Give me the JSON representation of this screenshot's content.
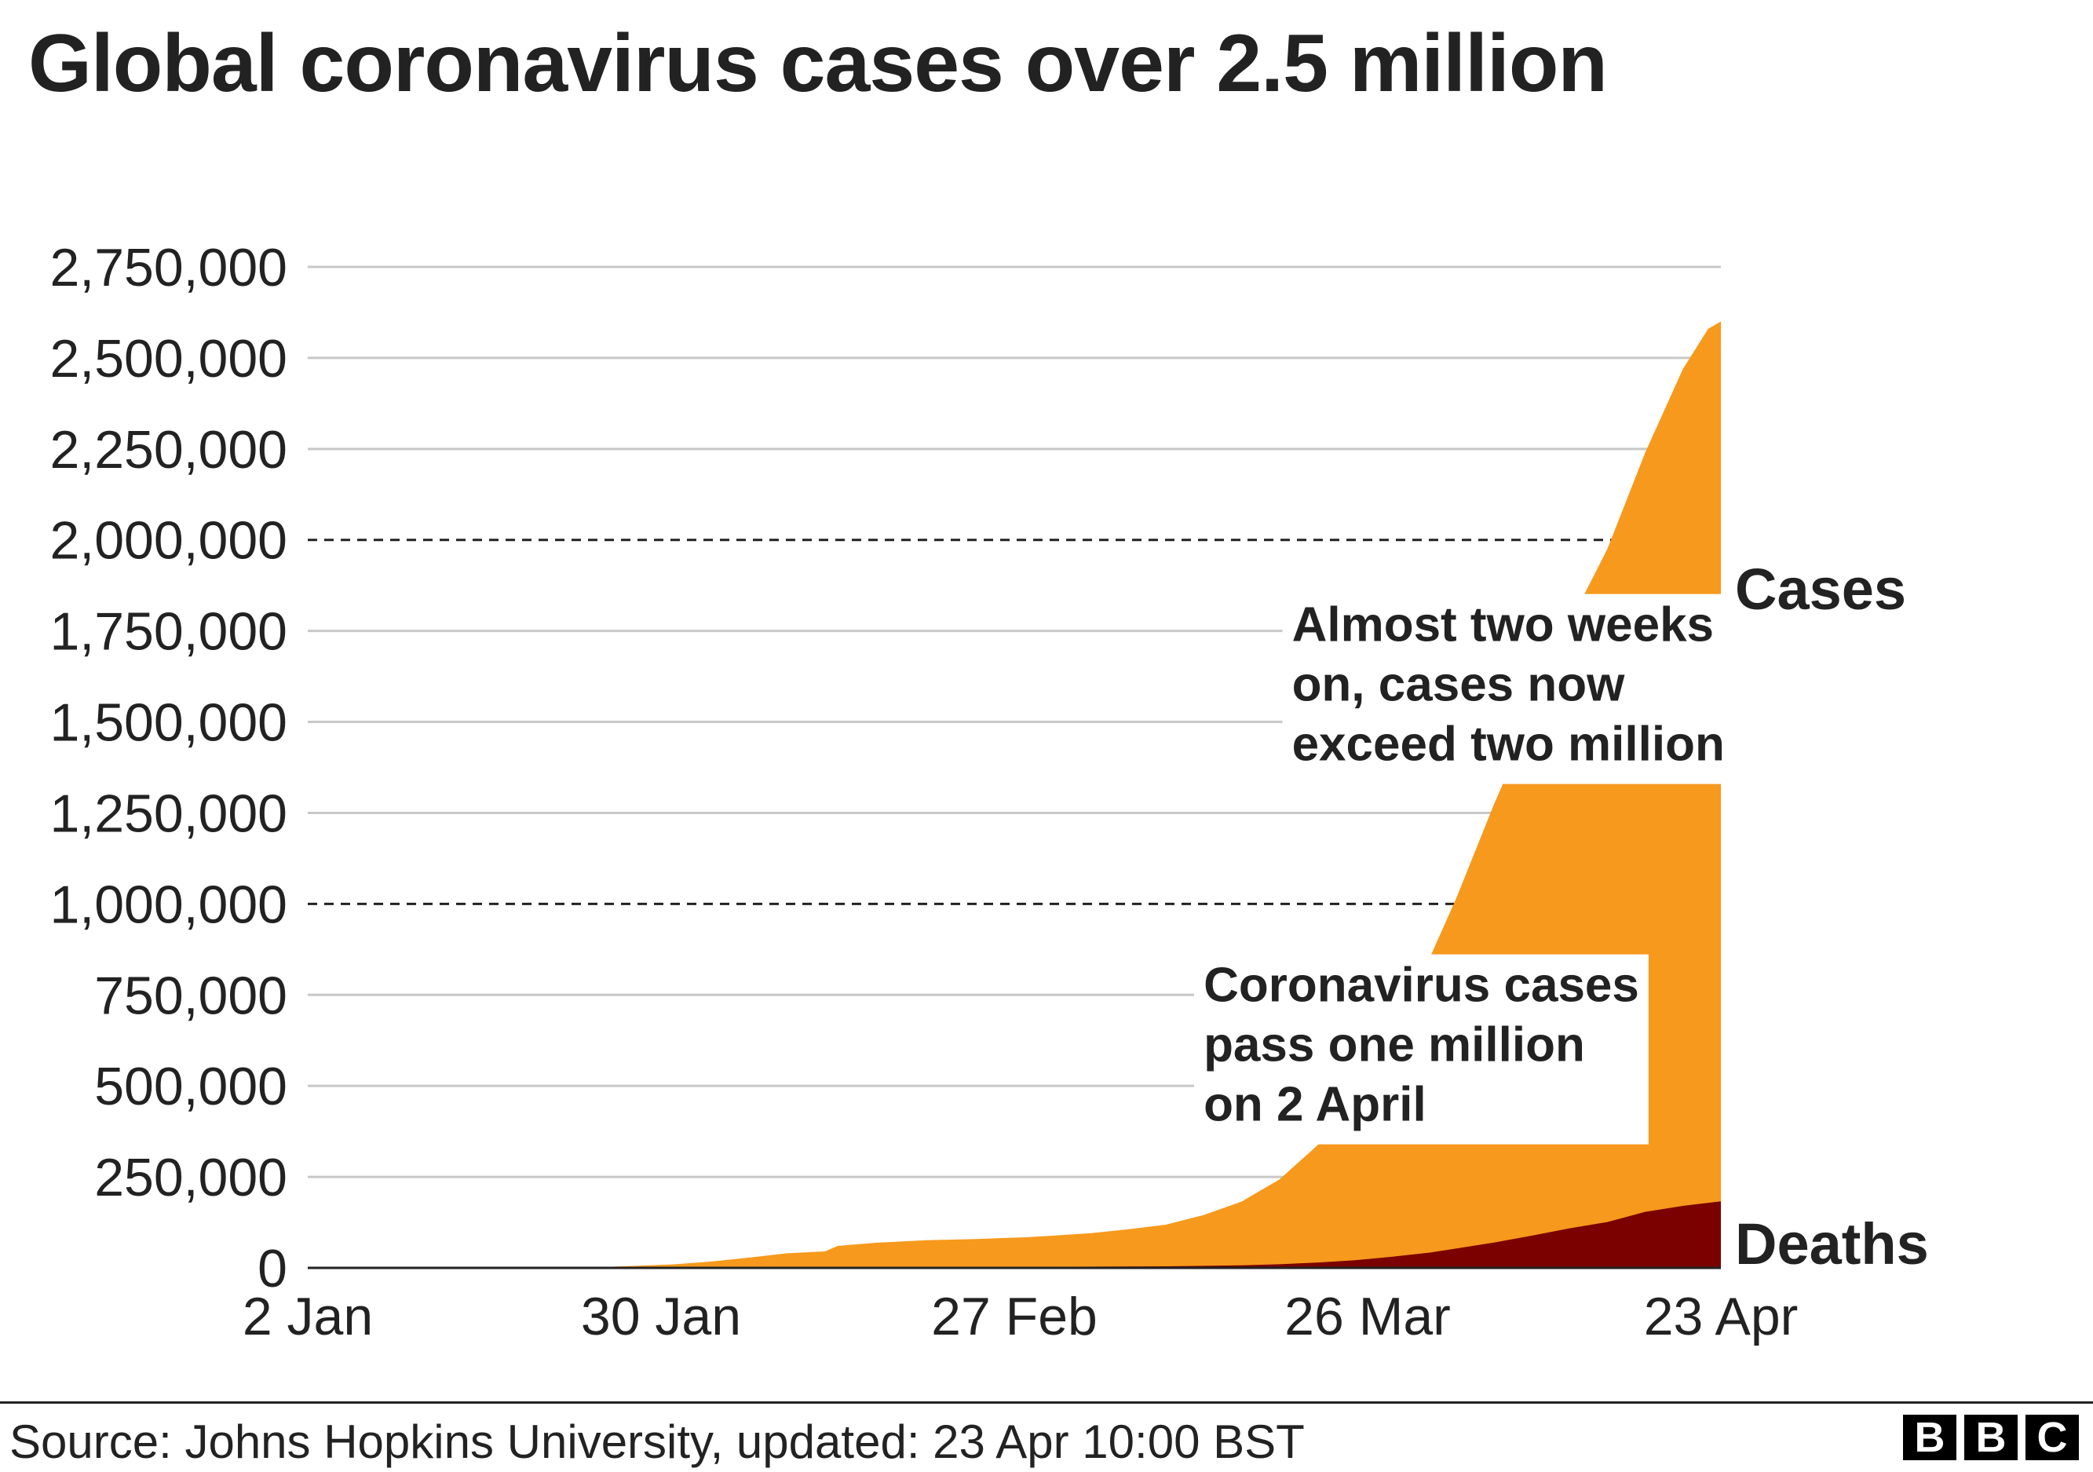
{
  "title": "Global coronavirus cases over 2.5 million",
  "source": "Source: Johns Hopkins University, updated: 23 Apr 10:00 BST",
  "logo": [
    "B",
    "B",
    "C"
  ],
  "colors": {
    "cases": "#F7991C",
    "deaths": "#7B0100",
    "grid": "#C8C8C8",
    "text": "#222222"
  },
  "chart_data": {
    "type": "area",
    "ylim": [
      0,
      2750000
    ],
    "xlim": [
      "2020-01-02",
      "2020-04-23"
    ],
    "y_ticks": [
      0,
      250000,
      500000,
      750000,
      1000000,
      1250000,
      1500000,
      1750000,
      2000000,
      2250000,
      2500000,
      2750000
    ],
    "y_tick_labels": [
      "0",
      "250,000",
      "500,000",
      "750,000",
      "1,000,000",
      "1,250,000",
      "1,500,000",
      "1,750,000",
      "2,000,000",
      "2,250,000",
      "2,500,000",
      "2,750,000"
    ],
    "x_ticks": [
      "2020-01-02",
      "2020-01-30",
      "2020-02-27",
      "2020-03-26",
      "2020-04-23"
    ],
    "x_tick_labels": [
      "2 Jan",
      "30 Jan",
      "27 Feb",
      "26 Mar",
      "23 Apr"
    ],
    "dashed_lines": [
      1000000,
      2000000
    ],
    "series": [
      {
        "name": "Cases",
        "points": [
          [
            "2020-01-02",
            0
          ],
          [
            "2020-01-20",
            300
          ],
          [
            "2020-01-22",
            560
          ],
          [
            "2020-01-25",
            2000
          ],
          [
            "2020-01-28",
            5600
          ],
          [
            "2020-01-31",
            9800
          ],
          [
            "2020-02-03",
            17400
          ],
          [
            "2020-02-06",
            28300
          ],
          [
            "2020-02-09",
            40200
          ],
          [
            "2020-02-12",
            45200
          ],
          [
            "2020-02-13",
            60400
          ],
          [
            "2020-02-16",
            69000
          ],
          [
            "2020-02-20",
            76000
          ],
          [
            "2020-02-24",
            79400
          ],
          [
            "2020-02-28",
            84100
          ],
          [
            "2020-03-01",
            88400
          ],
          [
            "2020-03-04",
            95100
          ],
          [
            "2020-03-07",
            105800
          ],
          [
            "2020-03-10",
            118600
          ],
          [
            "2020-03-13",
            145200
          ],
          [
            "2020-03-16",
            182000
          ],
          [
            "2020-03-19",
            242700
          ],
          [
            "2020-03-22",
            335900
          ],
          [
            "2020-03-25",
            467600
          ],
          [
            "2020-03-28",
            660700
          ],
          [
            "2020-03-31",
            857500
          ],
          [
            "2020-04-02",
            1013000
          ],
          [
            "2020-04-05",
            1272000
          ],
          [
            "2020-04-08",
            1512000
          ],
          [
            "2020-04-11",
            1770000
          ],
          [
            "2020-04-14",
            1975000
          ],
          [
            "2020-04-17",
            2240000
          ],
          [
            "2020-04-20",
            2470000
          ],
          [
            "2020-04-22",
            2580000
          ],
          [
            "2020-04-23",
            2600000
          ]
        ]
      },
      {
        "name": "Deaths",
        "points": [
          [
            "2020-01-02",
            0
          ],
          [
            "2020-01-31",
            213
          ],
          [
            "2020-02-14",
            1500
          ],
          [
            "2020-03-01",
            3000
          ],
          [
            "2020-03-10",
            4300
          ],
          [
            "2020-03-16",
            7100
          ],
          [
            "2020-03-19",
            10000
          ],
          [
            "2020-03-22",
            14600
          ],
          [
            "2020-03-25",
            21200
          ],
          [
            "2020-03-28",
            30800
          ],
          [
            "2020-03-31",
            42300
          ],
          [
            "2020-04-02",
            53000
          ],
          [
            "2020-04-05",
            69400
          ],
          [
            "2020-04-08",
            88500
          ],
          [
            "2020-04-11",
            108800
          ],
          [
            "2020-04-14",
            126000
          ],
          [
            "2020-04-17",
            154000
          ],
          [
            "2020-04-20",
            170400
          ],
          [
            "2020-04-23",
            183000
          ]
        ]
      }
    ],
    "annotations": [
      {
        "text": [
          "Coronavirus cases",
          "pass one million",
          "on 2 April"
        ],
        "date": "2020-03-13",
        "value": 870000
      },
      {
        "text": [
          "Almost two weeks",
          "on, cases now",
          "exceed two million"
        ],
        "date": "2020-03-20",
        "value": 1860000
      }
    ]
  }
}
